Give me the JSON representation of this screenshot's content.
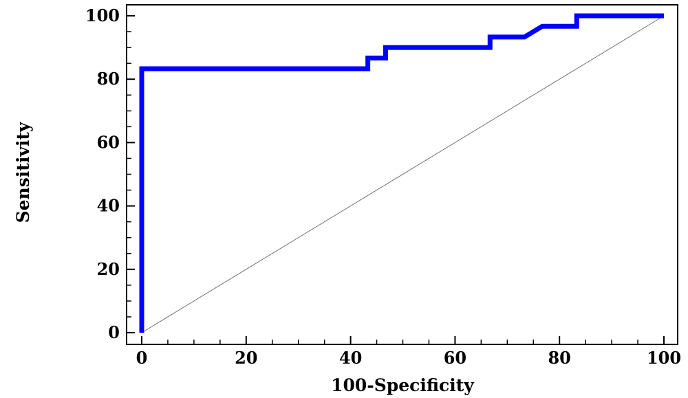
{
  "chart_data": {
    "type": "line",
    "title": "",
    "xlabel": "100-Specificity",
    "ylabel": "Sensitivity",
    "xlim": [
      0,
      100
    ],
    "ylim": [
      0,
      100
    ],
    "xticks": [
      0,
      20,
      40,
      60,
      80,
      100
    ],
    "yticks": [
      0,
      20,
      40,
      60,
      80,
      100
    ],
    "xtick_labels": [
      "0",
      "20",
      "40",
      "60",
      "80",
      "100"
    ],
    "ytick_labels": [
      "0",
      "20",
      "40",
      "60",
      "80",
      "100"
    ],
    "grid": false,
    "colors": {
      "roc": "#0000ff",
      "reference": "#6e6e6e",
      "frame": "#000000"
    },
    "series": [
      {
        "values": [
          [
            0,
            0
          ],
          [
            0,
            83.3
          ],
          [
            43.3,
            83.3
          ],
          [
            43.3,
            86.7
          ],
          [
            46.7,
            86.7
          ],
          [
            46.7,
            90
          ],
          [
            66.7,
            90
          ],
          [
            66.7,
            93.3
          ],
          [
            73.3,
            93.3
          ],
          [
            76.7,
            96.7
          ],
          [
            83.3,
            96.7
          ],
          [
            83.3,
            100
          ],
          [
            100,
            100
          ]
        ]
      },
      {
        "values": [
          [
            0,
            0
          ],
          [
            100,
            100
          ]
        ]
      }
    ]
  }
}
